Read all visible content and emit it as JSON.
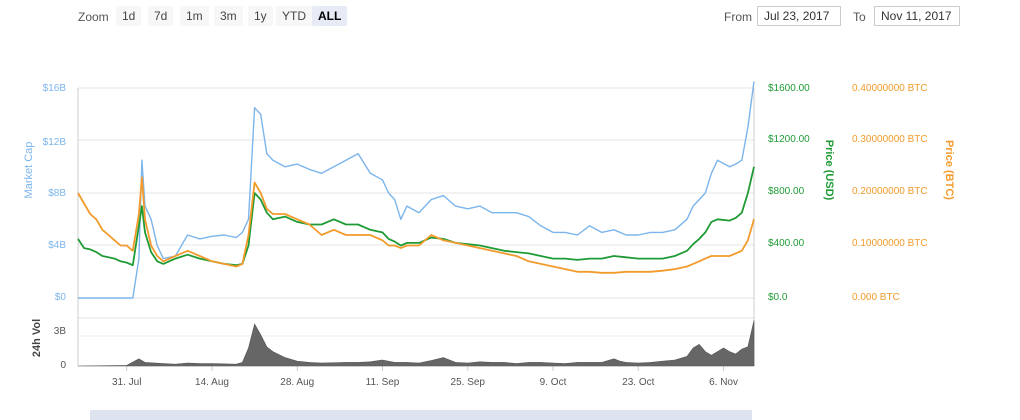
{
  "toolbar": {
    "zoom_label": "Zoom",
    "zoom_options": [
      "1d",
      "7d",
      "1m",
      "3m",
      "1y",
      "YTD",
      "ALL"
    ],
    "active_zoom": "ALL",
    "from_label": "From",
    "from_value": "Jul 23, 2017",
    "to_label": "To",
    "to_value": "Nov 11, 2017"
  },
  "chart_data": {
    "type": "line",
    "title": "",
    "x_tick_labels": [
      "31. Jul",
      "14. Aug",
      "28. Aug",
      "11. Sep",
      "25. Sep",
      "9. Oct",
      "23. Oct",
      "6. Nov"
    ],
    "x_tick_days": [
      8,
      22,
      36,
      50,
      64,
      78,
      92,
      106
    ],
    "x_range_days": [
      0,
      111
    ],
    "date_start": "Jul 23, 2017",
    "axes": {
      "market_cap": {
        "label": "Market Cap",
        "range": [
          0,
          16
        ],
        "ticks": [
          "$0",
          "$4B",
          "$8B",
          "$12B",
          "$16B"
        ],
        "color": "#7cb5ec"
      },
      "price_usd": {
        "label": "Price (USD)",
        "range": [
          0,
          1600
        ],
        "ticks": [
          "$0.0",
          "$400.00",
          "$800.00",
          "$1200.00",
          "$1600.00"
        ],
        "color": "#1f9b35"
      },
      "price_btc": {
        "label": "Price (BTC)",
        "range": [
          0,
          0.4
        ],
        "ticks": [
          "0.000 BTC",
          "0.10000000 BTC",
          "0.20000000 BTC",
          "0.30000000 BTC",
          "0.40000000 BTC"
        ],
        "color": "#f29b2c"
      },
      "volume": {
        "label": "24h Vol",
        "range": [
          0,
          4
        ],
        "ticks": [
          "0",
          "3B"
        ],
        "color": "#666666"
      }
    },
    "series": [
      {
        "name": "Market Cap",
        "axis": "market_cap",
        "color": "#7cb5ec",
        "points": [
          [
            0,
            0
          ],
          [
            9,
            0
          ],
          [
            10,
            3
          ],
          [
            10.5,
            10.5
          ],
          [
            11,
            7
          ],
          [
            12,
            6
          ],
          [
            13,
            4
          ],
          [
            14,
            3
          ],
          [
            16,
            3.2
          ],
          [
            18,
            4.8
          ],
          [
            20,
            4.5
          ],
          [
            22,
            4.7
          ],
          [
            24,
            4.8
          ],
          [
            26,
            4.6
          ],
          [
            27,
            5
          ],
          [
            28,
            6
          ],
          [
            29,
            14.5
          ],
          [
            30,
            14
          ],
          [
            31,
            11
          ],
          [
            32,
            10.5
          ],
          [
            34,
            10
          ],
          [
            36,
            10.2
          ],
          [
            38,
            9.8
          ],
          [
            40,
            9.5
          ],
          [
            42,
            10
          ],
          [
            44,
            10.5
          ],
          [
            46,
            11
          ],
          [
            48,
            9.5
          ],
          [
            50,
            9
          ],
          [
            51,
            8
          ],
          [
            52,
            7.5
          ],
          [
            53,
            6
          ],
          [
            54,
            7
          ],
          [
            56,
            6.5
          ],
          [
            58,
            7.5
          ],
          [
            60,
            7.8
          ],
          [
            62,
            7
          ],
          [
            64,
            6.8
          ],
          [
            66,
            7
          ],
          [
            68,
            6.5
          ],
          [
            70,
            6.5
          ],
          [
            72,
            6.5
          ],
          [
            74,
            6.2
          ],
          [
            76,
            5.5
          ],
          [
            78,
            5
          ],
          [
            80,
            5
          ],
          [
            82,
            4.8
          ],
          [
            84,
            5.5
          ],
          [
            86,
            5
          ],
          [
            88,
            5.2
          ],
          [
            90,
            4.8
          ],
          [
            92,
            4.8
          ],
          [
            94,
            5
          ],
          [
            96,
            5
          ],
          [
            98,
            5.2
          ],
          [
            100,
            6
          ],
          [
            101,
            7
          ],
          [
            102,
            7.5
          ],
          [
            103,
            8
          ],
          [
            104,
            9.5
          ],
          [
            105,
            10.5
          ],
          [
            107,
            10
          ],
          [
            108,
            10.2
          ],
          [
            109,
            10.5
          ],
          [
            110,
            13
          ],
          [
            111,
            16.5
          ]
        ]
      },
      {
        "name": "Price (USD)",
        "axis": "price_usd",
        "color": "#1f9b35",
        "points": [
          [
            0,
            450
          ],
          [
            1,
            380
          ],
          [
            2,
            370
          ],
          [
            3,
            350
          ],
          [
            4,
            320
          ],
          [
            5,
            310
          ],
          [
            6,
            300
          ],
          [
            7,
            280
          ],
          [
            8,
            270
          ],
          [
            9,
            250
          ],
          [
            10,
            550
          ],
          [
            10.5,
            700
          ],
          [
            11,
            500
          ],
          [
            12,
            350
          ],
          [
            13,
            280
          ],
          [
            14,
            260
          ],
          [
            16,
            300
          ],
          [
            18,
            330
          ],
          [
            20,
            300
          ],
          [
            22,
            280
          ],
          [
            24,
            260
          ],
          [
            26,
            250
          ],
          [
            27,
            260
          ],
          [
            28,
            400
          ],
          [
            29,
            800
          ],
          [
            30,
            750
          ],
          [
            31,
            650
          ],
          [
            32,
            600
          ],
          [
            34,
            620
          ],
          [
            36,
            580
          ],
          [
            38,
            560
          ],
          [
            40,
            560
          ],
          [
            42,
            600
          ],
          [
            44,
            560
          ],
          [
            46,
            560
          ],
          [
            48,
            520
          ],
          [
            50,
            500
          ],
          [
            51,
            450
          ],
          [
            52,
            430
          ],
          [
            53,
            400
          ],
          [
            54,
            420
          ],
          [
            56,
            420
          ],
          [
            58,
            460
          ],
          [
            60,
            450
          ],
          [
            62,
            420
          ],
          [
            64,
            410
          ],
          [
            66,
            400
          ],
          [
            68,
            380
          ],
          [
            70,
            360
          ],
          [
            72,
            350
          ],
          [
            74,
            340
          ],
          [
            76,
            320
          ],
          [
            78,
            300
          ],
          [
            80,
            300
          ],
          [
            82,
            290
          ],
          [
            84,
            300
          ],
          [
            86,
            300
          ],
          [
            88,
            320
          ],
          [
            90,
            310
          ],
          [
            92,
            300
          ],
          [
            94,
            300
          ],
          [
            96,
            300
          ],
          [
            98,
            320
          ],
          [
            100,
            360
          ],
          [
            101,
            410
          ],
          [
            102,
            450
          ],
          [
            103,
            500
          ],
          [
            104,
            580
          ],
          [
            105,
            600
          ],
          [
            107,
            590
          ],
          [
            108,
            610
          ],
          [
            109,
            650
          ],
          [
            110,
            800
          ],
          [
            111,
            1000
          ]
        ]
      },
      {
        "name": "Price (BTC)",
        "axis": "price_btc",
        "color": "#f29b2c",
        "points": [
          [
            0,
            0.2
          ],
          [
            1,
            0.18
          ],
          [
            2,
            0.16
          ],
          [
            3,
            0.15
          ],
          [
            4,
            0.13
          ],
          [
            5,
            0.12
          ],
          [
            6,
            0.11
          ],
          [
            7,
            0.1
          ],
          [
            8,
            0.1
          ],
          [
            9,
            0.09
          ],
          [
            10,
            0.16
          ],
          [
            10.5,
            0.23
          ],
          [
            11,
            0.15
          ],
          [
            12,
            0.1
          ],
          [
            13,
            0.08
          ],
          [
            14,
            0.07
          ],
          [
            16,
            0.08
          ],
          [
            18,
            0.09
          ],
          [
            20,
            0.08
          ],
          [
            22,
            0.07
          ],
          [
            24,
            0.065
          ],
          [
            26,
            0.06
          ],
          [
            27,
            0.065
          ],
          [
            28,
            0.12
          ],
          [
            29,
            0.22
          ],
          [
            30,
            0.2
          ],
          [
            31,
            0.17
          ],
          [
            32,
            0.16
          ],
          [
            34,
            0.16
          ],
          [
            36,
            0.15
          ],
          [
            38,
            0.14
          ],
          [
            40,
            0.12
          ],
          [
            42,
            0.13
          ],
          [
            44,
            0.12
          ],
          [
            46,
            0.12
          ],
          [
            48,
            0.12
          ],
          [
            50,
            0.11
          ],
          [
            51,
            0.1
          ],
          [
            52,
            0.1
          ],
          [
            53,
            0.095
          ],
          [
            54,
            0.1
          ],
          [
            56,
            0.1
          ],
          [
            58,
            0.12
          ],
          [
            60,
            0.11
          ],
          [
            62,
            0.105
          ],
          [
            64,
            0.1
          ],
          [
            66,
            0.095
          ],
          [
            68,
            0.09
          ],
          [
            70,
            0.085
          ],
          [
            72,
            0.08
          ],
          [
            74,
            0.07
          ],
          [
            76,
            0.065
          ],
          [
            78,
            0.06
          ],
          [
            80,
            0.055
          ],
          [
            82,
            0.05
          ],
          [
            84,
            0.05
          ],
          [
            86,
            0.048
          ],
          [
            88,
            0.048
          ],
          [
            90,
            0.05
          ],
          [
            92,
            0.05
          ],
          [
            94,
            0.05
          ],
          [
            96,
            0.052
          ],
          [
            98,
            0.055
          ],
          [
            100,
            0.06
          ],
          [
            101,
            0.065
          ],
          [
            102,
            0.07
          ],
          [
            103,
            0.075
          ],
          [
            104,
            0.08
          ],
          [
            105,
            0.08
          ],
          [
            107,
            0.08
          ],
          [
            108,
            0.085
          ],
          [
            109,
            0.09
          ],
          [
            110,
            0.11
          ],
          [
            111,
            0.15
          ]
        ]
      },
      {
        "name": "24h Vol",
        "axis": "volume",
        "color": "#666666",
        "points": [
          [
            0,
            0
          ],
          [
            8,
            0.05
          ],
          [
            10,
            0.6
          ],
          [
            11,
            0.3
          ],
          [
            14,
            0.2
          ],
          [
            16,
            0.15
          ],
          [
            18,
            0.25
          ],
          [
            20,
            0.2
          ],
          [
            22,
            0.2
          ],
          [
            26,
            0.15
          ],
          [
            27,
            0.3
          ],
          [
            28,
            1.5
          ],
          [
            29,
            3.5
          ],
          [
            30,
            2.6
          ],
          [
            31,
            1.6
          ],
          [
            32,
            1.2
          ],
          [
            34,
            0.7
          ],
          [
            36,
            0.4
          ],
          [
            38,
            0.3
          ],
          [
            40,
            0.25
          ],
          [
            44,
            0.3
          ],
          [
            46,
            0.3
          ],
          [
            48,
            0.35
          ],
          [
            50,
            0.5
          ],
          [
            52,
            0.3
          ],
          [
            54,
            0.3
          ],
          [
            56,
            0.25
          ],
          [
            58,
            0.45
          ],
          [
            60,
            0.7
          ],
          [
            62,
            0.3
          ],
          [
            64,
            0.25
          ],
          [
            66,
            0.35
          ],
          [
            68,
            0.3
          ],
          [
            70,
            0.3
          ],
          [
            72,
            0.2
          ],
          [
            74,
            0.3
          ],
          [
            76,
            0.3
          ],
          [
            78,
            0.25
          ],
          [
            80,
            0.2
          ],
          [
            82,
            0.3
          ],
          [
            84,
            0.3
          ],
          [
            86,
            0.3
          ],
          [
            88,
            0.6
          ],
          [
            89,
            0.4
          ],
          [
            90,
            0.3
          ],
          [
            92,
            0.25
          ],
          [
            94,
            0.3
          ],
          [
            96,
            0.4
          ],
          [
            98,
            0.5
          ],
          [
            100,
            0.8
          ],
          [
            101,
            1.5
          ],
          [
            102,
            1.8
          ],
          [
            103,
            1.2
          ],
          [
            104,
            0.9
          ],
          [
            105,
            1.2
          ],
          [
            106,
            1.5
          ],
          [
            107,
            1.2
          ],
          [
            108,
            1
          ],
          [
            109,
            1.4
          ],
          [
            110,
            1.6
          ],
          [
            111,
            3.8
          ]
        ]
      }
    ],
    "grid": true,
    "legend": "none"
  }
}
